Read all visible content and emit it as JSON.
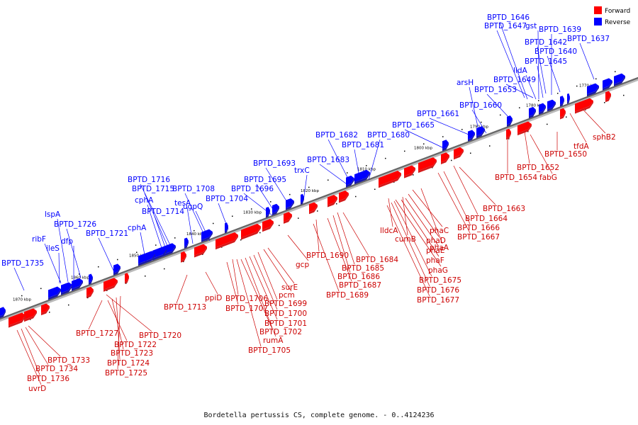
{
  "legend": [
    {
      "label": "Forward",
      "color": "#ff0000"
    },
    {
      "label": "Reverse",
      "color": "#0000ff"
    }
  ],
  "caption": "Bordetella pertussis CS, complete genome. - 0..4124236",
  "colors": {
    "forward": "#ff0000",
    "forward_shade": "#d41a1a",
    "reverse": "#0000ff",
    "reverse_shade": "#1a1aa8",
    "backbone": "#666666",
    "dot": "#000000"
  },
  "ticks": [
    "1770 kbp",
    "1780 kbp",
    "1790 kbp",
    "1800 kbp",
    "1810 kbp",
    "1820 kbp",
    "1830 kbp",
    "1840 kbp",
    "1850 kbp",
    "1860 kbp",
    "1870 kbp"
  ],
  "reverse_labels": [
    "BPTD_1646",
    "BPTD_1647",
    "gst",
    "BPTD_1639",
    "BPTD_1642",
    "BPTD_1637",
    "BPTD_1640",
    "BPTD_1645",
    "lldA",
    "BPTD_1649",
    "arsH",
    "BPTD_1653",
    "BPTD_1660",
    "BPTD_1661",
    "BPTD_1665",
    "BPTD_1682",
    "BPTD_1680",
    "BPTD_1681",
    "BPTD_1683",
    "BPTD_1693",
    "trxC",
    "BPTD_1695",
    "BPTD_1696",
    "BPTD_1716",
    "BPTD_1715",
    "BPTD_1708",
    "cphA",
    "tesA",
    "BPTD_1714",
    "ugpQ",
    "BPTD_1704",
    "lspA",
    "BPTD_1726",
    "cphA",
    "ribF",
    "dfp",
    "BPTD_1721",
    "ileS",
    "BPTD_1735"
  ],
  "forward_labels": [
    "sphB2",
    "tfdA",
    "BPTD_1650",
    "BPTD_1652",
    "fabG",
    "BPTD_1654",
    "BPTD_1663",
    "BPTD_1664",
    "BPTD_1666",
    "BPTD_1667",
    "lldcA",
    "phaC",
    "cumB",
    "phaD",
    "phaA",
    "phaE",
    "phaF",
    "phaG",
    "BPTD_1675",
    "BPTD_1676",
    "BPTD_1677",
    "BPTD_1684",
    "BPTD_1690",
    "BPTD_1685",
    "BPTD_1686",
    "BPTD_1687",
    "BPTD_1689",
    "gcp",
    "surE",
    "pcm",
    "BPTD_1699",
    "BPTD_1700",
    "BPTD_1701",
    "BPTD_1702",
    "rumA",
    "BPTD_1705",
    "BPTD_1706",
    "BPTD_1707",
    "ppiD",
    "BPTD_1713",
    "BPTD_1720",
    "BPTD_1727",
    "BPTD_1722",
    "BPTD_1723",
    "BPTD_1724",
    "BPTD_1725",
    "BPTD_1733",
    "BPTD_1734",
    "BPTD_1736",
    "uvrD"
  ]
}
